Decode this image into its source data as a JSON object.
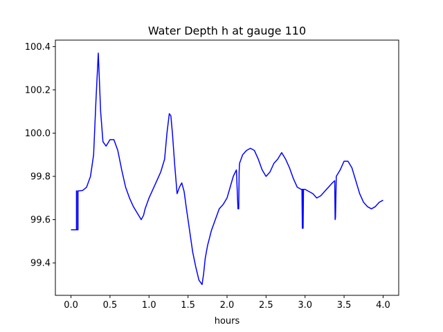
{
  "chart_data": {
    "type": "line",
    "title": "Water Depth h at gauge 110",
    "xlabel": "hours",
    "ylabel": "",
    "xlim": [
      -0.2,
      4.2
    ],
    "ylim": [
      99.25,
      100.43
    ],
    "xticks": [
      0.0,
      0.5,
      1.0,
      1.5,
      2.0,
      2.5,
      3.0,
      3.5,
      4.0
    ],
    "xtick_labels": [
      "0.0",
      "0.5",
      "1.0",
      "1.5",
      "2.0",
      "2.5",
      "3.0",
      "3.5",
      "4.0"
    ],
    "yticks": [
      99.4,
      99.6,
      99.8,
      100.0,
      100.2,
      100.4
    ],
    "ytick_labels": [
      "99.4",
      "99.6",
      "99.8",
      "100.0",
      "100.2",
      "100.4"
    ],
    "grid": false,
    "series": [
      {
        "color": "#0000ff",
        "x": [
          0.0,
          0.07,
          0.07,
          0.075,
          0.075,
          0.09,
          0.09,
          0.1,
          0.15,
          0.2,
          0.25,
          0.29,
          0.32,
          0.35,
          0.38,
          0.41,
          0.45,
          0.5,
          0.55,
          0.6,
          0.65,
          0.7,
          0.75,
          0.8,
          0.85,
          0.9,
          0.93,
          0.95,
          1.0,
          1.05,
          1.1,
          1.15,
          1.2,
          1.23,
          1.26,
          1.28,
          1.3,
          1.33,
          1.36,
          1.39,
          1.42,
          1.45,
          1.48,
          1.52,
          1.56,
          1.6,
          1.64,
          1.68,
          1.7,
          1.72,
          1.75,
          1.8,
          1.85,
          1.9,
          1.95,
          2.0,
          2.04,
          2.08,
          2.12,
          2.14,
          2.15,
          2.155,
          2.16,
          2.17,
          2.2,
          2.25,
          2.3,
          2.35,
          2.4,
          2.45,
          2.5,
          2.55,
          2.6,
          2.65,
          2.7,
          2.75,
          2.8,
          2.85,
          2.9,
          2.95,
          2.96,
          2.965,
          2.97,
          2.975,
          2.98,
          3.0,
          3.05,
          3.1,
          3.15,
          3.2,
          3.25,
          3.3,
          3.35,
          3.38,
          3.385,
          3.39,
          3.4,
          3.45,
          3.5,
          3.55,
          3.6,
          3.65,
          3.7,
          3.75,
          3.8,
          3.85,
          3.9,
          3.95,
          4.0
        ],
        "y": [
          99.553,
          99.553,
          99.733,
          99.733,
          99.553,
          99.553,
          99.733,
          99.733,
          99.735,
          99.75,
          99.8,
          99.9,
          100.15,
          100.37,
          100.1,
          99.96,
          99.94,
          99.97,
          99.97,
          99.92,
          99.83,
          99.75,
          99.7,
          99.66,
          99.63,
          99.6,
          99.62,
          99.65,
          99.7,
          99.74,
          99.78,
          99.82,
          99.88,
          100.0,
          100.09,
          100.08,
          100.0,
          99.85,
          99.72,
          99.75,
          99.77,
          99.73,
          99.65,
          99.55,
          99.45,
          99.38,
          99.32,
          99.3,
          99.35,
          99.42,
          99.48,
          99.55,
          99.6,
          99.65,
          99.67,
          99.7,
          99.75,
          99.8,
          99.83,
          99.65,
          99.65,
          99.82,
          99.86,
          99.87,
          99.9,
          99.92,
          99.93,
          99.92,
          99.88,
          99.83,
          99.8,
          99.82,
          99.86,
          99.88,
          99.91,
          99.88,
          99.84,
          99.79,
          99.75,
          99.74,
          99.74,
          99.56,
          99.74,
          99.56,
          99.74,
          99.74,
          99.73,
          99.72,
          99.7,
          99.71,
          99.73,
          99.75,
          99.77,
          99.78,
          99.6,
          99.61,
          99.8,
          99.83,
          99.87,
          99.87,
          99.84,
          99.78,
          99.72,
          99.68,
          99.66,
          99.65,
          99.66,
          99.68,
          99.69
        ]
      }
    ]
  }
}
